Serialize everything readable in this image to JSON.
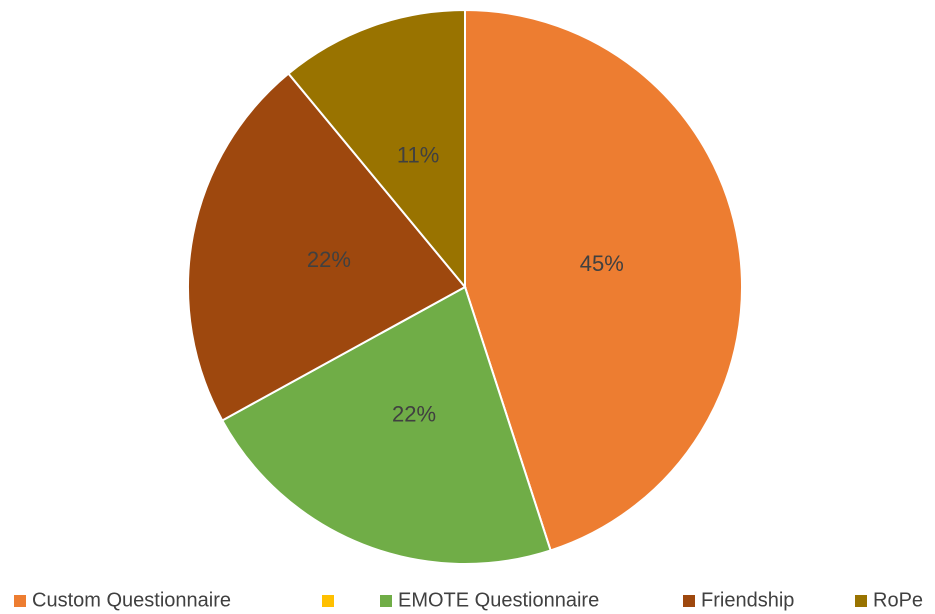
{
  "chart_data": {
    "type": "pie",
    "categories": [
      "Custom Questionnaire",
      null,
      "EMOTE Questionnaire",
      "Friendship",
      "RoPe"
    ],
    "values": [
      45,
      0,
      22,
      22,
      11
    ],
    "value_labels": [
      "45%",
      null,
      "22%",
      "22%",
      "11%"
    ],
    "colors": [
      "#ED7D31",
      "#FFC000",
      "#70AD47",
      "#9E480E",
      "#997300"
    ],
    "legend": "bottom"
  }
}
